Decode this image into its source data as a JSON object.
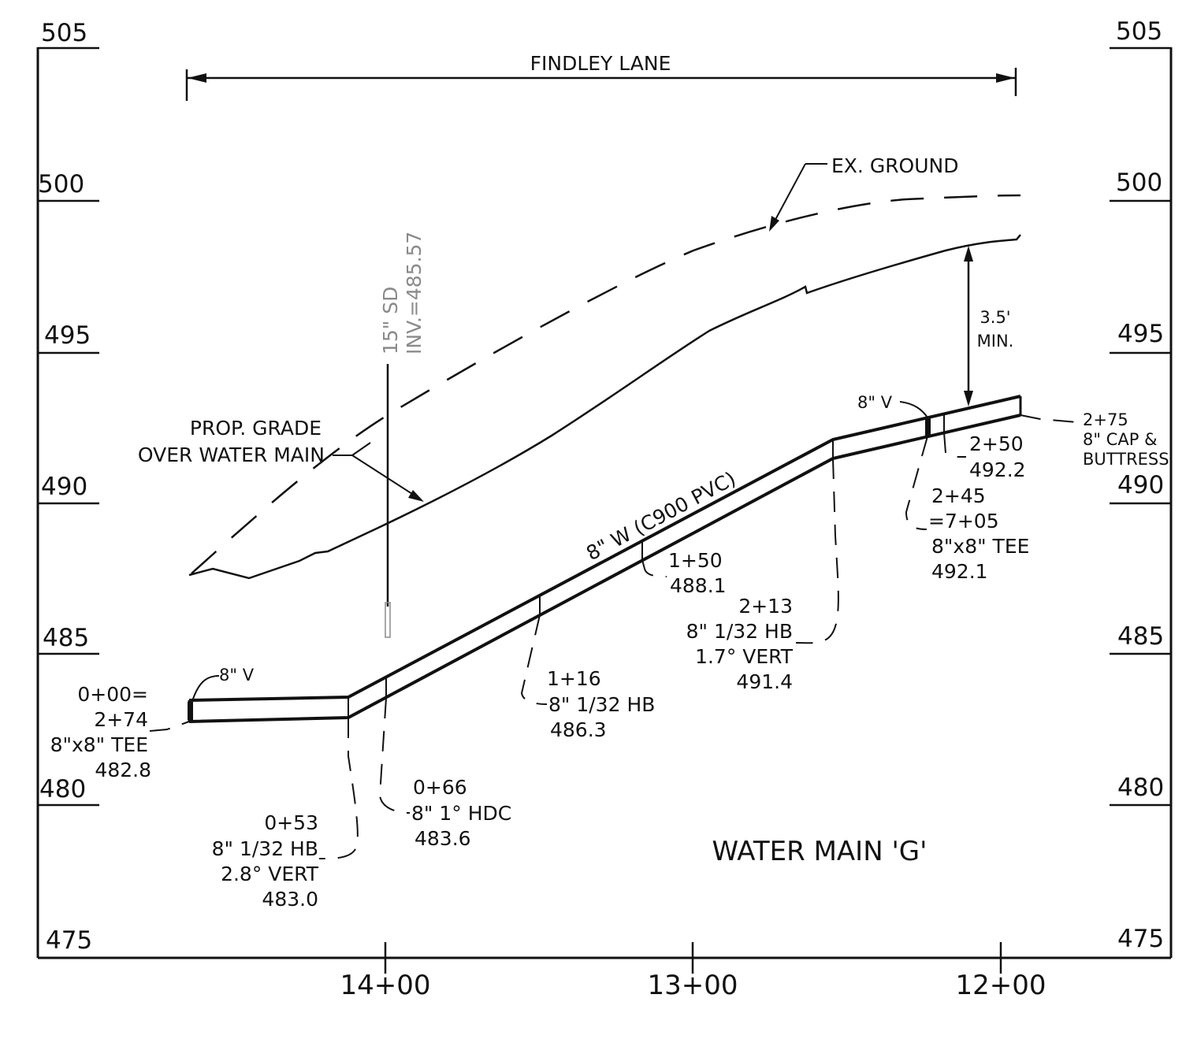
{
  "title": "WATER MAIN 'G'",
  "street": {
    "name": "FINDLEY LANE"
  },
  "elevation_axis": {
    "left_labels": [
      "505",
      "500",
      "495",
      "490",
      "485",
      "480",
      "475"
    ],
    "right_labels": [
      "505",
      "500",
      "495",
      "490",
      "485",
      "480",
      "475"
    ]
  },
  "station_axis": {
    "labels": [
      "14+00",
      "13+00",
      "12+00"
    ]
  },
  "ground": {
    "existing_label": "EX. GROUND",
    "proposed_label_line1": "PROP. GRADE",
    "proposed_label_line2": "OVER WATER MAIN"
  },
  "pipe": {
    "label": "8\" W (C900 PVC)"
  },
  "cover": {
    "line1": "3.5'",
    "line2": "MIN."
  },
  "storm_drain": {
    "line1": "15\" SD",
    "line2": "INV.=485.57"
  },
  "valves": {
    "left": "8\" V",
    "right": "8\" V"
  },
  "callouts": {
    "sta_0": {
      "l1": "0+00=",
      "l2": "2+74",
      "l3": "8\"x8\" TEE",
      "l4": "482.8"
    },
    "sta_53": {
      "l1": "0+53",
      "l2": "8\" 1/32 HB",
      "l3": "2.8° VERT",
      "l4": "483.0"
    },
    "sta_66": {
      "l1": "0+66",
      "l2": "8\" 1° HDC",
      "l3": "483.6"
    },
    "sta_116": {
      "l1": "1+16",
      "l2": "8\" 1/32 HB",
      "l3": "486.3"
    },
    "sta_150": {
      "l1": "1+50",
      "l2": "488.1"
    },
    "sta_213": {
      "l1": "2+13",
      "l2": "8\" 1/32 HB",
      "l3": "1.7° VERT",
      "l4": "491.4"
    },
    "sta_245": {
      "l1": "2+45",
      "l2": "=7+05",
      "l3": "8\"x8\" TEE",
      "l4": "492.1"
    },
    "sta_250": {
      "l1": "2+50",
      "l2": "492.2"
    },
    "sta_275": {
      "l1": "2+75",
      "l2": "8\" CAP &",
      "l3": "BUTTRESS"
    }
  }
}
